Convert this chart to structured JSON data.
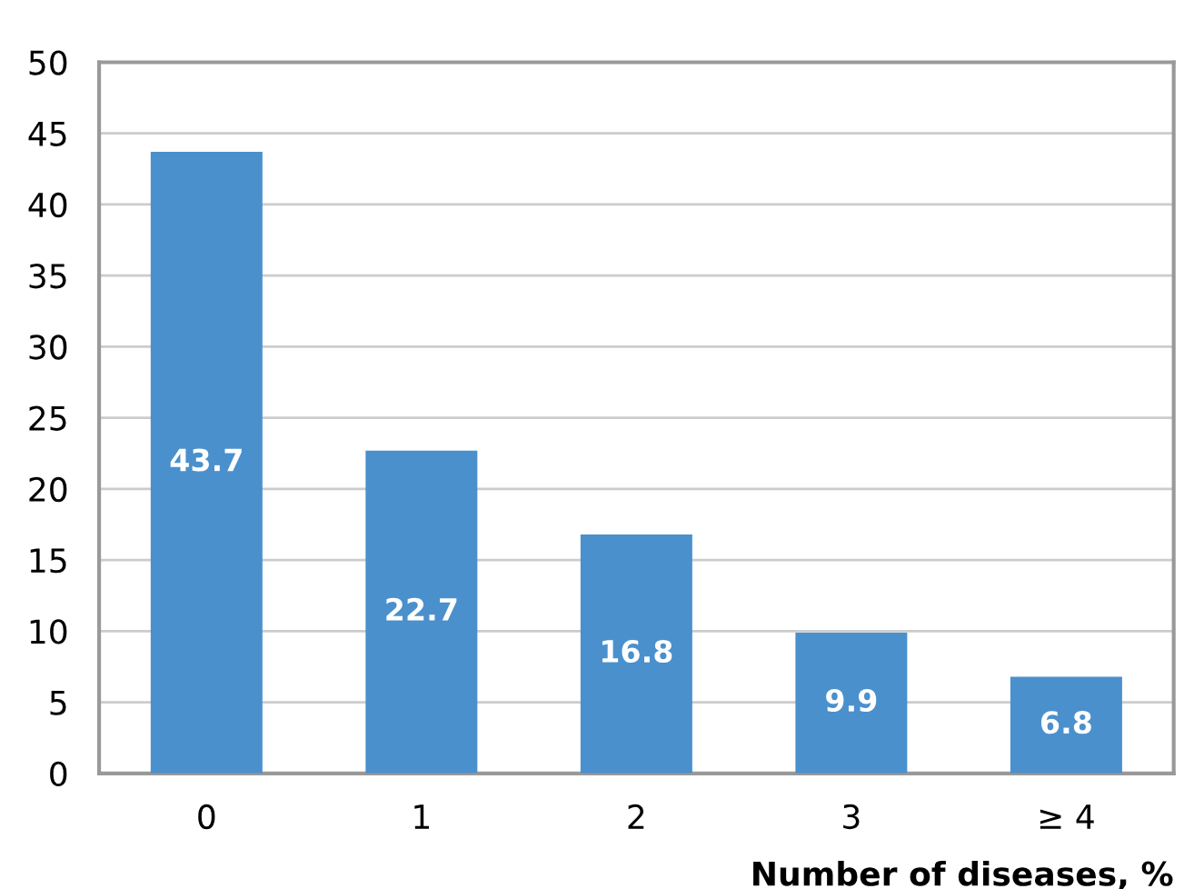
{
  "chart_data": {
    "type": "bar",
    "xlabel": "Number of diseases, %",
    "categories": [
      "0",
      "1",
      "2",
      "3",
      "≥ 4"
    ],
    "values": [
      43.7,
      22.7,
      16.8,
      9.9,
      6.8
    ],
    "color": "#4a90cd",
    "data_labels": true,
    "ylim": [
      0,
      50
    ],
    "yticks": [
      0,
      5,
      10,
      15,
      20,
      25,
      30,
      35,
      40,
      45,
      50
    ],
    "grid": "y",
    "legend": false
  }
}
